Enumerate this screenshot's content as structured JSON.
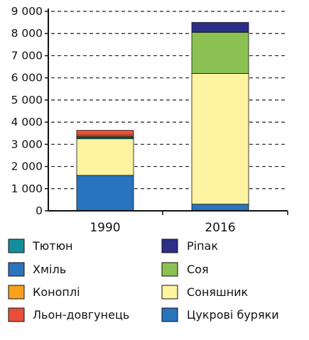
{
  "chart_data": {
    "type": "bar",
    "stacked": true,
    "title": "",
    "xlabel": "",
    "ylabel": "",
    "categories": [
      "1990",
      "2016"
    ],
    "ylim": [
      0,
      9000
    ],
    "yticks": [
      0,
      1000,
      2000,
      3000,
      4000,
      5000,
      6000,
      7000,
      8000,
      9000
    ],
    "ytick_labels": [
      "0",
      "1 000",
      "2 000",
      "3 000",
      "4 000",
      "5 000",
      "6 000",
      "7 000",
      "8 000",
      "9 000"
    ],
    "grid": "horizontal-dashed",
    "legend_position": "bottom",
    "series": [
      {
        "name": "Цукрові буряки",
        "color": "#2a73bd",
        "values": [
          1600,
          300
        ]
      },
      {
        "name": "Соняшник",
        "color": "#fdf3a0",
        "values": [
          1650,
          5900
        ]
      },
      {
        "name": "Соя",
        "color": "#8bc152",
        "values": [
          0,
          1850
        ]
      },
      {
        "name": "Ріпак",
        "color": "#2b2f86",
        "values": [
          0,
          450
        ]
      },
      {
        "name": "Тютюн",
        "color": "#138f9c",
        "values": [
          70,
          0
        ]
      },
      {
        "name": "Хміль",
        "color": "#2a73bd",
        "values": [
          30,
          0
        ]
      },
      {
        "name": "Коноплі",
        "color": "#f7a11c",
        "values": [
          60,
          0
        ]
      },
      {
        "name": "Льон-довгунець",
        "color": "#e8503a",
        "values": [
          220,
          0
        ]
      }
    ],
    "legend_left": [
      "Тютюн",
      "Хміль",
      "Коноплі",
      "Льон-довгунець"
    ],
    "legend_right": [
      "Ріпак",
      "Соя",
      "Соняшник",
      "Цукрові буряки"
    ]
  }
}
